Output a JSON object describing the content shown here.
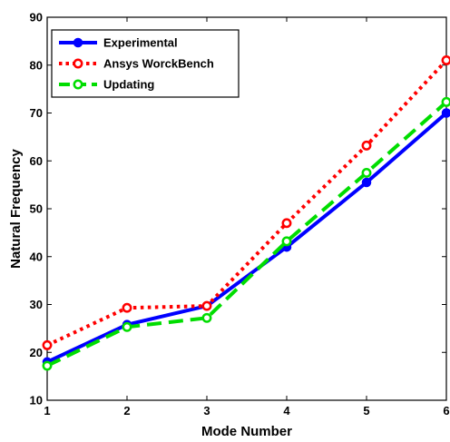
{
  "chart_data": {
    "type": "line",
    "xlabel": "Mode Number",
    "ylabel": "Natural Frequency",
    "xlim": [
      1,
      6
    ],
    "ylim": [
      10,
      90
    ],
    "x_ticks": [
      "1",
      "2",
      "3",
      "4",
      "5",
      "6"
    ],
    "y_ticks": [
      "10",
      "20",
      "30",
      "40",
      "50",
      "60",
      "70",
      "80",
      "90"
    ],
    "x": [
      1,
      2,
      3,
      4,
      5,
      6
    ],
    "grid": false,
    "legend_position": "top-left",
    "series": [
      {
        "name": "Experimental",
        "values": [
          18,
          25.8,
          29.7,
          42,
          55.5,
          70
        ],
        "color": "#0000ff",
        "style": "solid",
        "marker": "filled-circle"
      },
      {
        "name": "Ansys WorckBench",
        "values": [
          21.5,
          29.3,
          29.7,
          47,
          63.2,
          81
        ],
        "color": "#ff0000",
        "style": "dotted",
        "marker": "open-circle"
      },
      {
        "name": "Updating",
        "values": [
          17.2,
          25.3,
          27.2,
          43.2,
          57.5,
          72.3
        ],
        "color": "#00dd00",
        "style": "dashed",
        "marker": "open-circle"
      }
    ]
  }
}
